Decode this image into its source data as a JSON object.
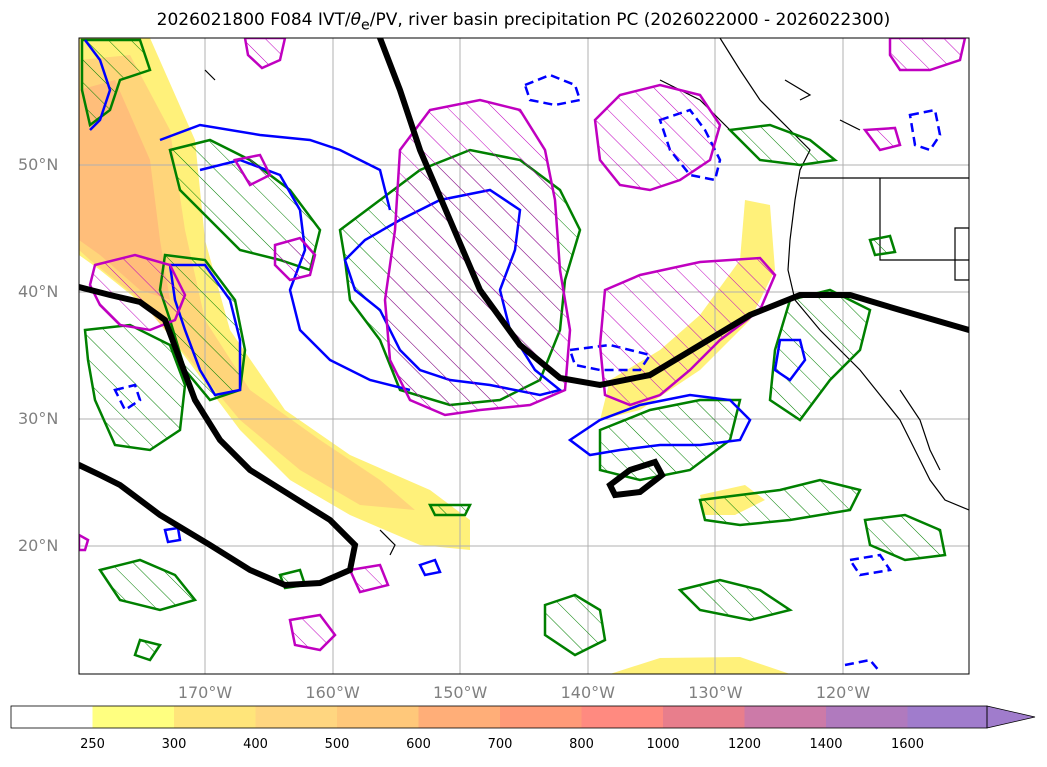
{
  "title": {
    "prefix": "2026021800 F084 IVT/",
    "theta": "θ",
    "sub": "e",
    "suffix": "/PV, river basin precipitation PC (2026022000 - 2026022300)"
  },
  "lat_ticks": [
    {
      "label": "50°N",
      "deg": 50
    },
    {
      "label": "40°N",
      "deg": 40
    },
    {
      "label": "30°N",
      "deg": 30
    },
    {
      "label": "20°N",
      "deg": 20
    }
  ],
  "lon_ticks": [
    {
      "label": "170°W",
      "deg": -170
    },
    {
      "label": "160°W",
      "deg": -160
    },
    {
      "label": "150°W",
      "deg": -150
    },
    {
      "label": "140°W",
      "deg": -140
    },
    {
      "label": "130°W",
      "deg": -130
    },
    {
      "label": "120°W",
      "deg": -120
    }
  ],
  "colorbar": {
    "levels": [
      "250",
      "300",
      "400",
      "500",
      "600",
      "700",
      "800",
      "1000",
      "1200",
      "1400",
      "1600"
    ],
    "colors": [
      "#ffffff",
      "#ffff80",
      "#ffe57a",
      "#ffd680",
      "#ffc87a",
      "#ffae78",
      "#ff9a78",
      "#ff8a80",
      "#e87e8c",
      "#cc7aa8",
      "#b07abe",
      "#a07ccc"
    ]
  },
  "colors": {
    "ivt_low": "#fff17a",
    "ivt_mid": "#ffd57a",
    "ivt_high": "#ffbe7a",
    "pv_line": "#000000",
    "theta_e_contour": "#0000ff",
    "precip_contour": "#008000",
    "pv_anomaly_contour": "#c000c0"
  }
}
